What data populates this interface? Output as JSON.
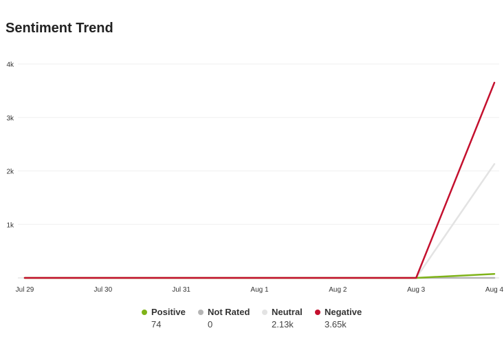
{
  "page": {
    "title": "Sentiment Trend"
  },
  "chart_data": {
    "type": "line",
    "title": "Sentiment Trend",
    "x": [
      "Jul 29",
      "Jul 30",
      "Jul 31",
      "Aug 1",
      "Aug 2",
      "Aug 3",
      "Aug 4"
    ],
    "y_ticks": [
      "1k",
      "2k",
      "3k",
      "4k"
    ],
    "y_tick_values": [
      1000,
      2000,
      3000,
      4000
    ],
    "ylim": [
      0,
      4000
    ],
    "grid": true,
    "legend_position": "bottom",
    "series": [
      {
        "name": "Positive",
        "color": "#7fb319",
        "total_label": "74",
        "values": [
          0,
          0,
          0,
          0,
          0,
          0,
          74
        ]
      },
      {
        "name": "Not Rated",
        "color": "#b5b5b5",
        "total_label": "0",
        "values": [
          0,
          0,
          0,
          0,
          0,
          0,
          0
        ]
      },
      {
        "name": "Neutral",
        "color": "#e3e3e3",
        "total_label": "2.13k",
        "values": [
          0,
          0,
          0,
          0,
          0,
          0,
          2130
        ]
      },
      {
        "name": "Negative",
        "color": "#c4102e",
        "total_label": "3.65k",
        "values": [
          0,
          0,
          0,
          0,
          0,
          0,
          3650
        ]
      }
    ]
  }
}
